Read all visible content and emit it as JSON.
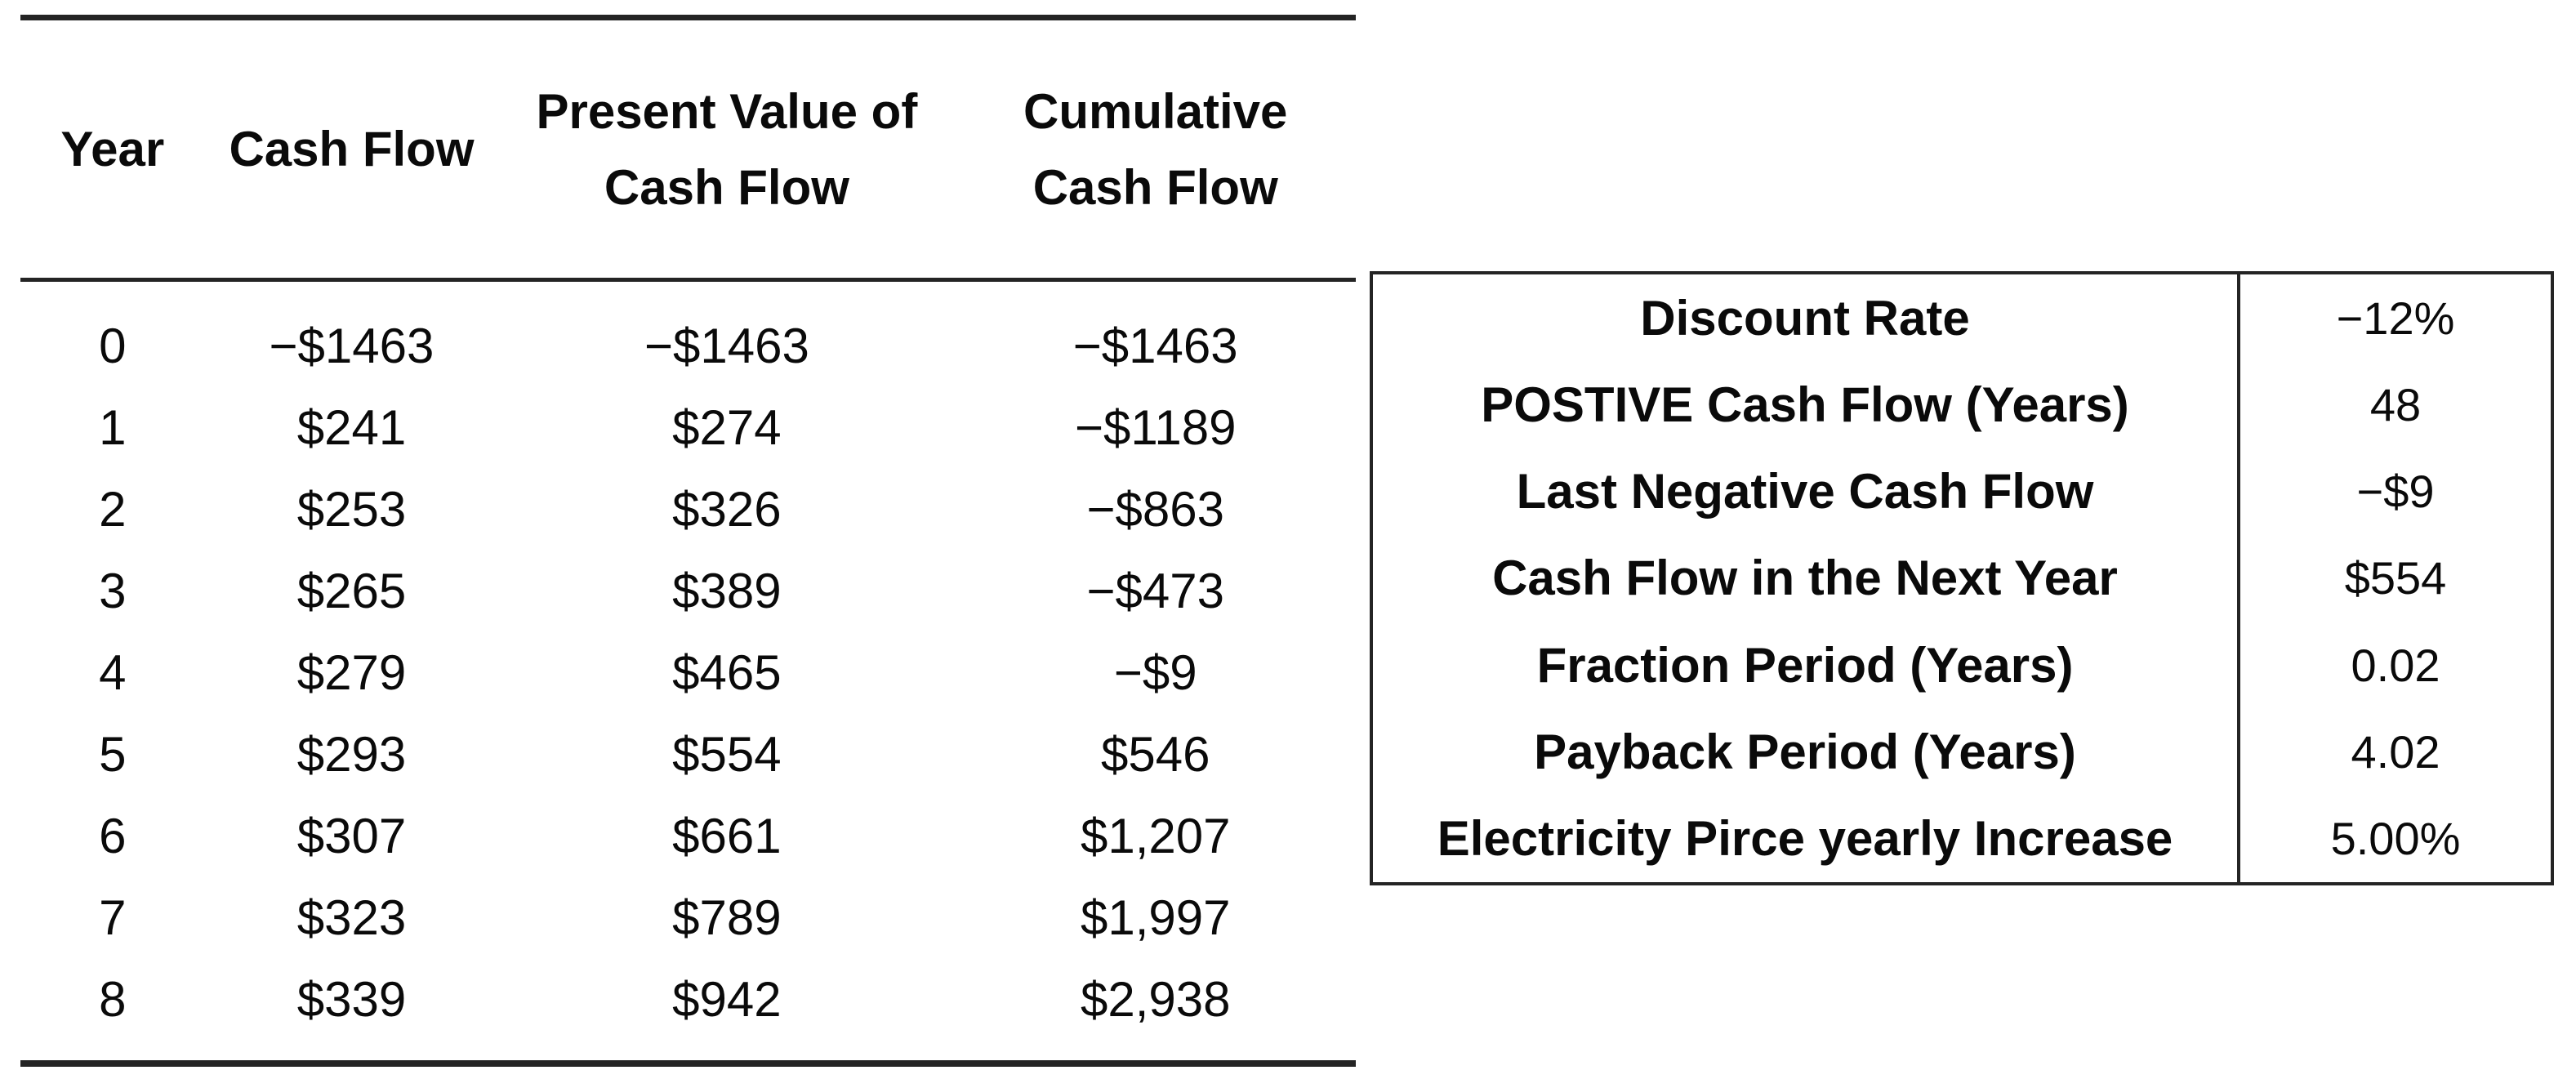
{
  "colors": {
    "background": "#ffffff",
    "text": "#0a0a0a",
    "rule": "#242424",
    "border": "#242424"
  },
  "cashflow_table": {
    "columns": [
      "Year",
      "Cash Flow",
      "Present Value of Cash Flow",
      "Cumulative Cash Flow"
    ],
    "rows": [
      [
        "0",
        "−$1463",
        "−$1463",
        "−$1463"
      ],
      [
        "1",
        "$241",
        "$274",
        "−$1189"
      ],
      [
        "2",
        "$253",
        "$326",
        "−$863"
      ],
      [
        "3",
        "$265",
        "$389",
        "−$473"
      ],
      [
        "4",
        "$279",
        "$465",
        "−$9"
      ],
      [
        "5",
        "$293",
        "$554",
        "$546"
      ],
      [
        "6",
        "$307",
        "$661",
        "$1,207"
      ],
      [
        "7",
        "$323",
        "$789",
        "$1,997"
      ],
      [
        "8",
        "$339",
        "$942",
        "$2,938"
      ]
    ]
  },
  "summary_table": {
    "rows": [
      {
        "label": "Discount Rate",
        "value": "−12%"
      },
      {
        "label": "POSTIVE Cash Flow (Years)",
        "value": "48"
      },
      {
        "label": "Last Negative Cash Flow",
        "value": "−$9"
      },
      {
        "label": "Cash Flow in the Next Year",
        "value": "$554"
      },
      {
        "label": "Fraction Period (Years)",
        "value": "0.02"
      },
      {
        "label": "Payback Period (Years)",
        "value": "4.02"
      },
      {
        "label": "Electricity Pirce yearly Increase",
        "value": "5.00%"
      }
    ]
  }
}
